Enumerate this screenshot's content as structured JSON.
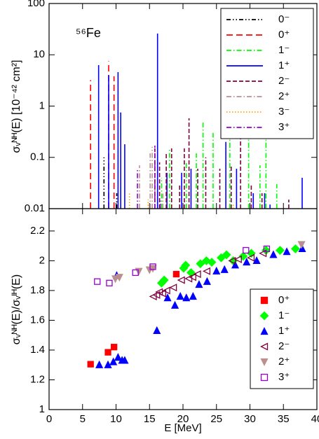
{
  "chart_data": [
    {
      "type": "stick",
      "annotation": "⁵⁶Fe",
      "ylabel": "σᵥᴺᴴ(E) [10⁻⁴² cm²]",
      "log_y": true,
      "legend": "upper right",
      "xlim": [
        0,
        40
      ],
      "xticks": [
        0,
        5,
        10,
        15,
        20,
        25,
        30,
        35,
        40
      ],
      "ylim": [
        0.01,
        100
      ],
      "yticks": [
        0.01,
        0.1,
        1,
        10,
        100
      ],
      "series": [
        {
          "name": "0⁻",
          "color": "#000000",
          "dash": "6,3,1.5,3,1.5,3",
          "x": [
            8.2,
            10.1
          ],
          "values": [
            0.1,
            0.02
          ]
        },
        {
          "name": "0⁺",
          "color": "#ff0000",
          "dash": "9,5",
          "x": [
            6.2,
            8.9,
            9.7
          ],
          "values": [
            3.2,
            7.5,
            3.8
          ]
        },
        {
          "name": "1⁻",
          "color": "#00ff00",
          "dash": "7,3,1.5,3",
          "x": [
            16.8,
            18.0,
            20.5,
            22.0,
            23.0,
            24.5,
            27.0,
            29.8,
            31.5,
            32.4,
            34.0
          ],
          "values": [
            0.04,
            0.15,
            0.08,
            0.12,
            0.5,
            0.3,
            0.3,
            0.8,
            0.07,
            0.3,
            0.03
          ]
        },
        {
          "name": "1⁺",
          "color": "#0000ff",
          "dash": "",
          "x": [
            7.4,
            8.9,
            10.3,
            10.7,
            11.3,
            16.2,
            17.6,
            19.8,
            21.2,
            26.4,
            28.0,
            30.5,
            32.2,
            33.0,
            37.8
          ],
          "values": [
            6.3,
            4.0,
            4.6,
            0.75,
            0.18,
            26,
            0.05,
            0.05,
            0.06,
            0.2,
            0.06,
            0.02,
            0.02,
            0.012,
            0.04
          ]
        },
        {
          "name": "2⁻",
          "color": "#800040",
          "dash": "6,3",
          "x": [
            15.8,
            16.5,
            17.5,
            18.3,
            19.5,
            20.2,
            20.9,
            22.2,
            23.4,
            25.5,
            27.2,
            28.6,
            30.2,
            31.8,
            35.8
          ],
          "values": [
            0.15,
            0.08,
            0.12,
            0.15,
            0.03,
            0.15,
            0.58,
            0.06,
            0.1,
            0.06,
            0.07,
            0.5,
            0.03,
            0.02,
            0.015
          ]
        },
        {
          "name": "2⁺",
          "color": "#bc8f8f",
          "dash": "7,3,1.5,3",
          "x": [
            13.5,
            15.1,
            15.4,
            17.0
          ],
          "values": [
            0.07,
            0.12,
            0.16,
            0.02
          ]
        },
        {
          "name": "3⁻",
          "color": "#ffa500",
          "dash": "1.5,2.5",
          "x": [
            12.0,
            14.8,
            27.5
          ],
          "values": [
            0.02,
            0.015,
            0.012
          ]
        },
        {
          "name": "3⁺",
          "color": "#9400d3",
          "dash": "7,3,1.5,3",
          "x": [
            13.2,
            15.8,
            16.6
          ],
          "values": [
            0.06,
            0.17,
            0.015
          ]
        }
      ]
    },
    {
      "type": "scatter",
      "ylabel": "σᵥᴺᴴ(E)/σᵥᴵᴴ(E)",
      "xlabel": "E [MeV]",
      "legend": "lower right",
      "xlim": [
        0,
        40
      ],
      "xticks": [
        0,
        5,
        10,
        15,
        20,
        25,
        30,
        35,
        40
      ],
      "ylim": [
        1,
        2.35
      ],
      "yticks": [
        1,
        1.2,
        1.4,
        1.6,
        1.8,
        2,
        2.2
      ],
      "series": [
        {
          "name": "0⁺",
          "color": "#ff0000",
          "marker": "square",
          "filled": true,
          "x": [
            6.2,
            8.8,
            9.7,
            19.0
          ],
          "values": [
            1.305,
            1.385,
            1.42,
            1.91
          ]
        },
        {
          "name": "1⁻",
          "color": "#00ff00",
          "marker": "diamond",
          "filled": true,
          "x": [
            16.8,
            17.2,
            20.1,
            20.4,
            21.2,
            22.6,
            23.5,
            24.3,
            25.7,
            26.5,
            27.5,
            29.0,
            30.2,
            32.4,
            34.5,
            36.8
          ],
          "values": [
            1.85,
            1.87,
            1.95,
            1.97,
            1.92,
            1.98,
            2.0,
            1.99,
            2.02,
            2.04,
            2.0,
            2.03,
            2.05,
            2.07,
            2.07,
            2.08
          ]
        },
        {
          "name": "1⁺",
          "color": "#0000ff",
          "marker": "triangle-up",
          "filled": true,
          "x": [
            7.5,
            8.8,
            9.6,
            10.1,
            10.3,
            10.9,
            11.3,
            16.1,
            17.7,
            18.8,
            19.6,
            20.5,
            21.5,
            22.4,
            23.6,
            25.0,
            26.2,
            27.8,
            29.5,
            31.0,
            33.5,
            35.5,
            37.8
          ],
          "values": [
            1.3,
            1.3,
            1.32,
            1.9,
            1.35,
            1.33,
            1.33,
            1.53,
            1.75,
            1.7,
            1.76,
            1.75,
            1.76,
            1.84,
            1.86,
            1.93,
            1.94,
            1.97,
            1.99,
            2.0,
            2.04,
            2.06,
            2.08
          ]
        },
        {
          "name": "2⁻",
          "color": "#800040",
          "marker": "triangle-left",
          "filled": false,
          "x": [
            15.6,
            16.1,
            16.5,
            17.0,
            17.6,
            18.6,
            19.8,
            20.9,
            21.5,
            22.2,
            23.6,
            27.4,
            28.3,
            30.2,
            32.0
          ],
          "values": [
            1.76,
            1.77,
            1.79,
            1.78,
            1.8,
            1.82,
            1.87,
            1.88,
            1.89,
            1.91,
            1.93,
            2.0,
            2.01,
            2.02,
            2.05
          ]
        },
        {
          "name": "2⁺",
          "color": "#bc8f8f",
          "marker": "triangle-down",
          "filled": true,
          "x": [
            9.9,
            10.5,
            13.4,
            15.0,
            15.5,
            37.7
          ],
          "values": [
            1.88,
            1.89,
            1.93,
            1.94,
            1.95,
            2.11
          ]
        },
        {
          "name": "3⁺",
          "color": "#9400d3",
          "marker": "square",
          "filled": false,
          "x": [
            7.2,
            9.0,
            12.9,
            15.5,
            29.4,
            32.5
          ],
          "values": [
            1.86,
            1.85,
            1.92,
            1.96,
            2.07,
            2.08
          ]
        }
      ]
    }
  ]
}
